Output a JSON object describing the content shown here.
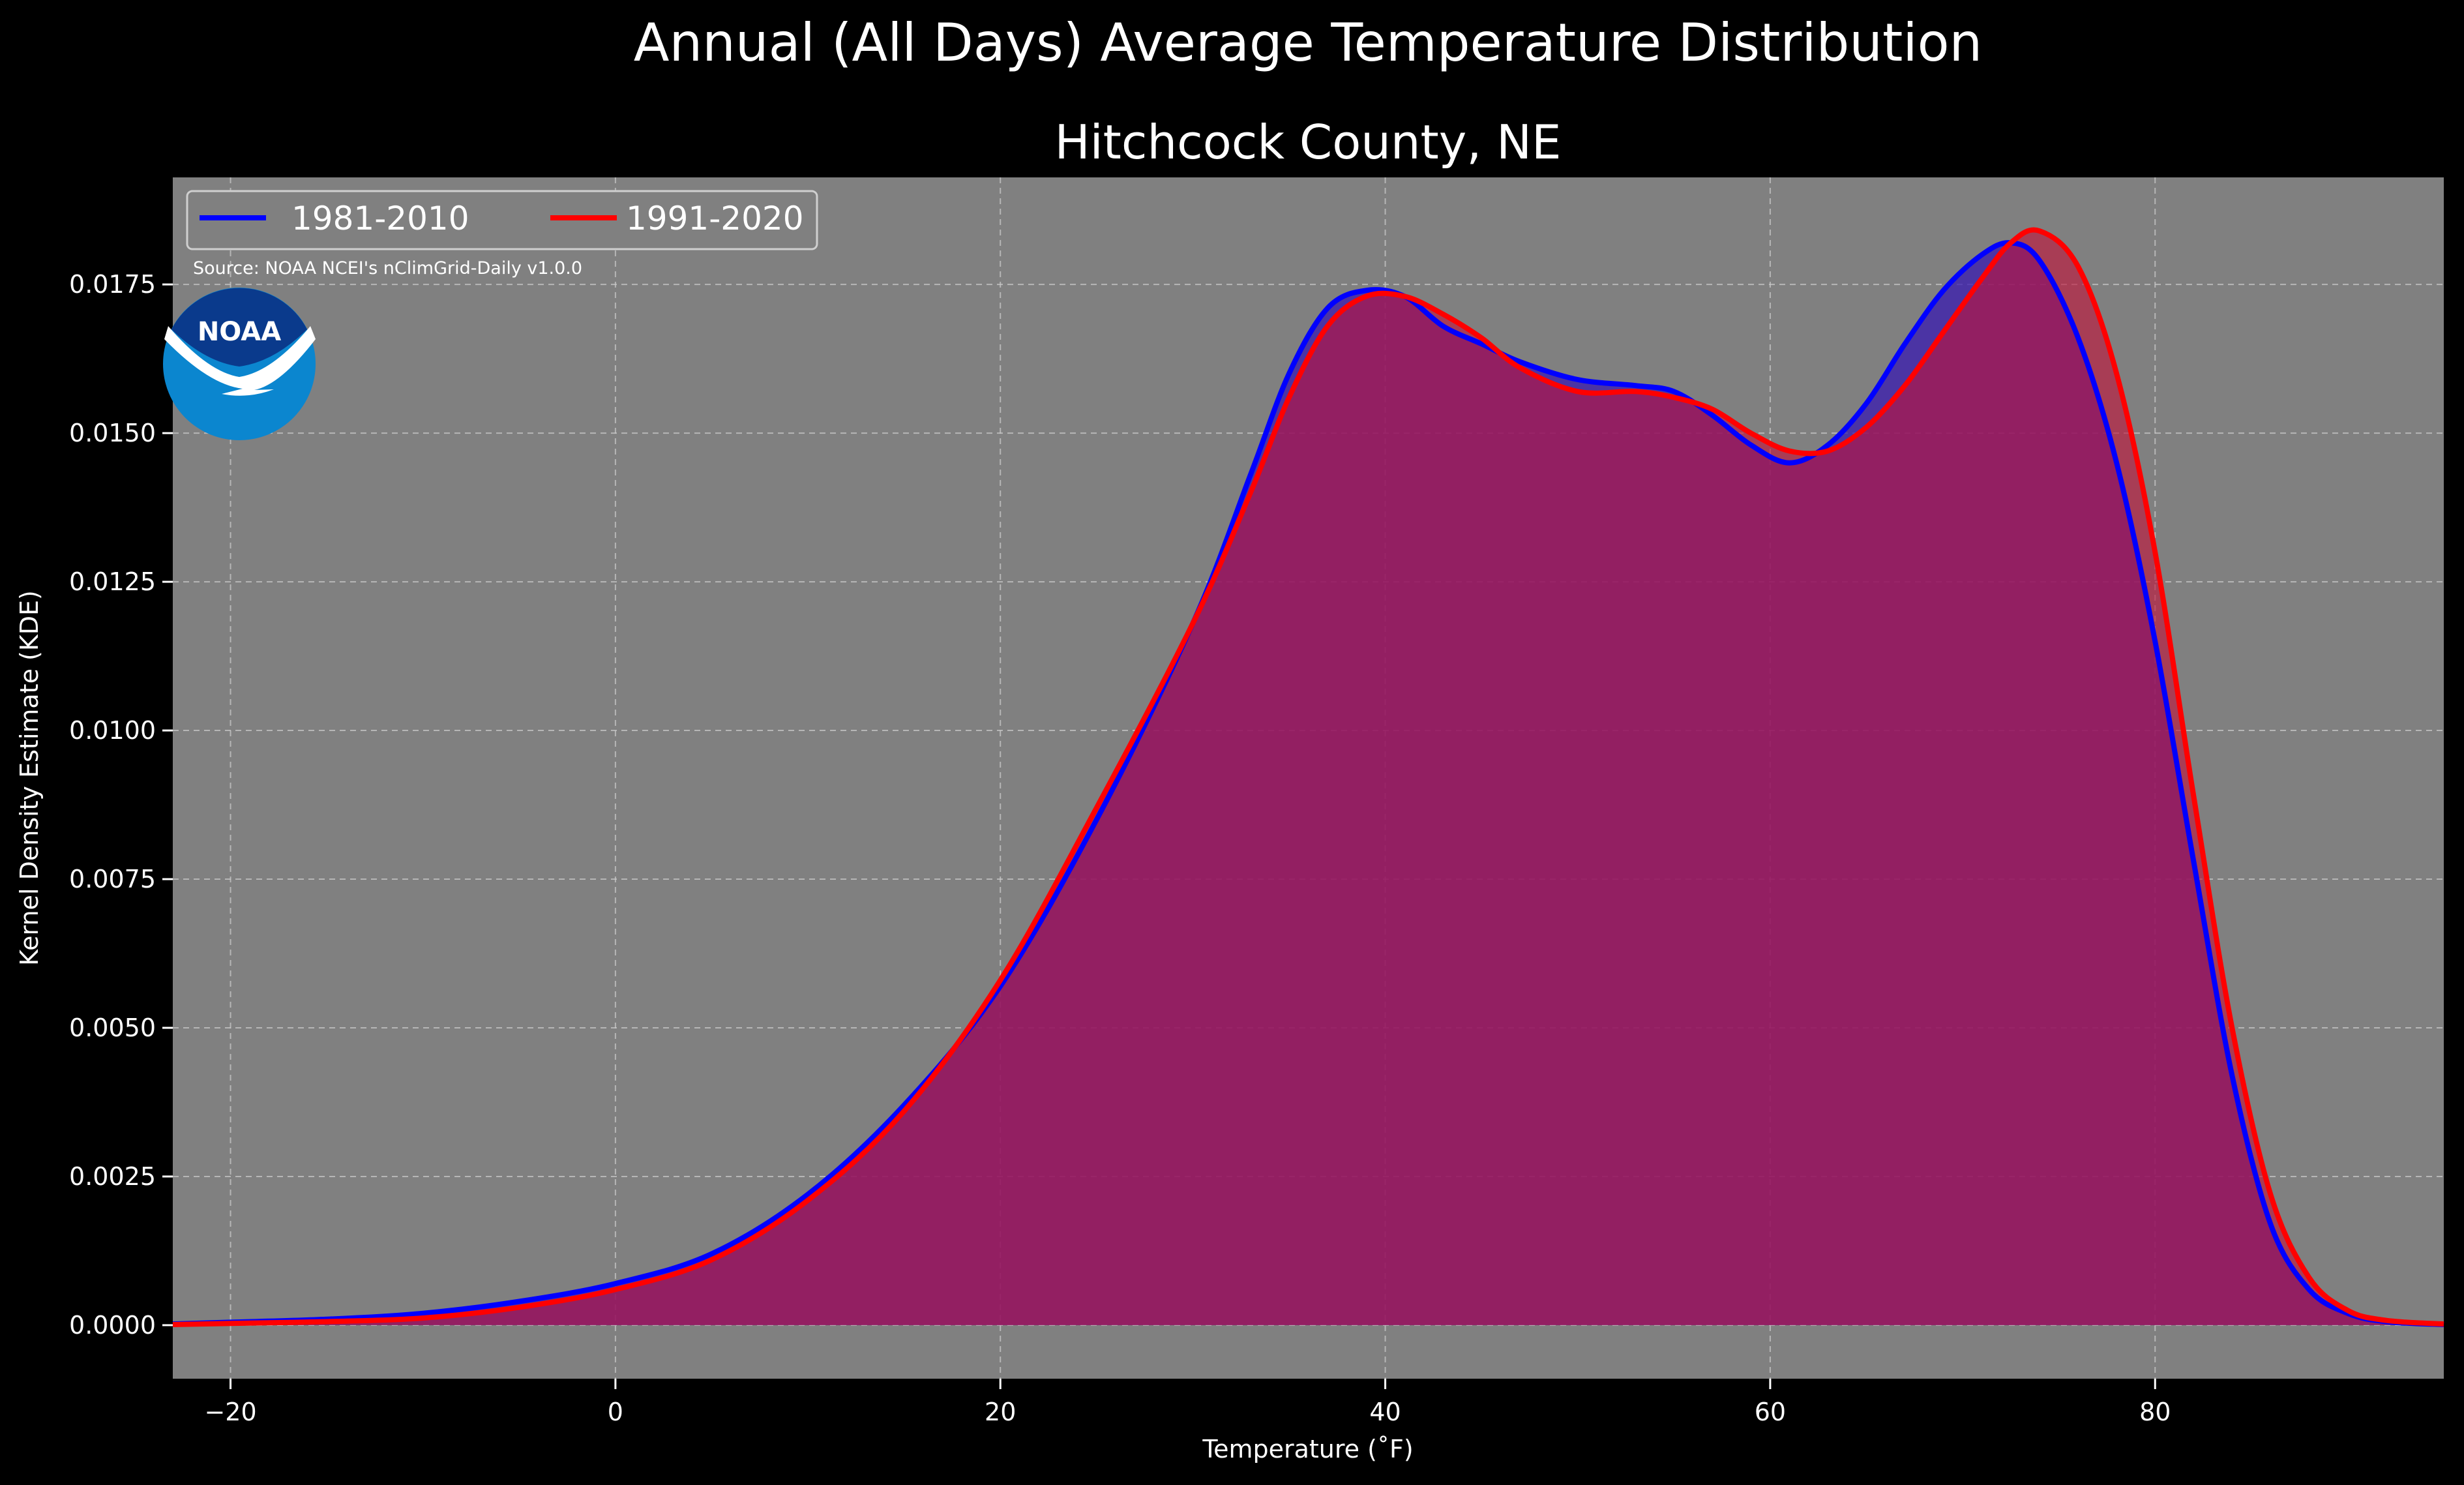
{
  "title": "Annual (All Days) Average Temperature Distribution",
  "subtitle": "Hitchcock County, NE",
  "source": "Source: NOAA NCEI's nClimGrid-Daily v1.0.0",
  "logo_text": "NOAA",
  "colors": {
    "background": "#000000",
    "plot_background": "#808080",
    "series_1981": "#0000ff",
    "series_1991": "#ff0000",
    "fill": "#9e1e5c",
    "logo_dark": "#0a3a8c",
    "logo_light": "#0b86cf"
  },
  "chart_data": {
    "type": "area",
    "title": "Annual (All Days) Average Temperature Distribution",
    "subtitle": "Hitchcock County, NE",
    "xlabel": "Temperature ($^\\circ$F)",
    "xlabel_display": "Temperature (˚F)",
    "ylabel": "Kernel Density Estimate (KDE)",
    "xlim": [
      -23,
      95
    ],
    "ylim": [
      -0.0009,
      0.0193
    ],
    "x_ticks": [
      -20,
      0,
      20,
      40,
      60,
      80
    ],
    "x_tick_labels": [
      "−20",
      "0",
      "20",
      "40",
      "60",
      "80"
    ],
    "y_ticks": [
      0,
      0.0025,
      0.005,
      0.0075,
      0.01,
      0.0125,
      0.015,
      0.0175
    ],
    "y_tick_labels": [
      "0.0000",
      "0.0025",
      "0.0050",
      "0.0075",
      "0.0100",
      "0.0125",
      "0.0150",
      "0.0175"
    ],
    "grid": true,
    "legend_position": "top-left",
    "series": [
      {
        "name": "1981-2010",
        "color": "#0000ff",
        "x": [
          -23,
          -20,
          -15,
          -10,
          -5,
          0,
          5,
          10,
          15,
          20,
          25,
          30,
          33,
          35,
          37,
          39,
          41,
          43,
          45,
          47,
          50,
          53,
          55,
          57,
          59,
          61,
          63,
          65,
          67,
          69,
          71,
          72.5,
          74,
          76,
          78,
          80,
          82,
          84,
          86,
          88,
          90,
          92,
          95
        ],
        "y": [
          2e-05,
          5e-05,
          0.0001,
          0.0002,
          0.0004,
          0.0007,
          0.0012,
          0.0022,
          0.0037,
          0.0057,
          0.0085,
          0.0118,
          0.0143,
          0.016,
          0.0171,
          0.0174,
          0.0173,
          0.0168,
          0.0165,
          0.0162,
          0.0159,
          0.0158,
          0.0157,
          0.0153,
          0.0148,
          0.0145,
          0.0148,
          0.0155,
          0.0165,
          0.0174,
          0.018,
          0.0182,
          0.0179,
          0.0166,
          0.0145,
          0.0115,
          0.0078,
          0.0042,
          0.0017,
          0.0006,
          0.0002,
          6e-05,
          1e-05
        ]
      },
      {
        "name": "1991-2020",
        "color": "#ff0000",
        "x": [
          -23,
          -20,
          -15,
          -10,
          -5,
          0,
          5,
          10,
          15,
          20,
          25,
          30,
          33,
          35,
          37,
          39,
          41,
          43,
          45,
          47,
          50,
          53,
          55,
          57,
          59,
          61,
          63,
          65,
          67,
          69,
          71,
          72.5,
          74,
          76,
          78,
          80,
          82,
          84,
          86,
          88,
          90,
          92,
          95
        ],
        "y": [
          1e-05,
          3e-05,
          6e-05,
          0.00012,
          0.0003,
          0.0006,
          0.0011,
          0.0021,
          0.0036,
          0.0058,
          0.0087,
          0.0118,
          0.014,
          0.0156,
          0.0168,
          0.0173,
          0.0173,
          0.017,
          0.0166,
          0.0161,
          0.0157,
          0.0157,
          0.0156,
          0.0154,
          0.015,
          0.0147,
          0.0147,
          0.0151,
          0.0158,
          0.0167,
          0.0176,
          0.0182,
          0.0184,
          0.0178,
          0.016,
          0.013,
          0.0089,
          0.005,
          0.0022,
          0.0008,
          0.00025,
          8e-05,
          2e-05
        ]
      }
    ]
  }
}
